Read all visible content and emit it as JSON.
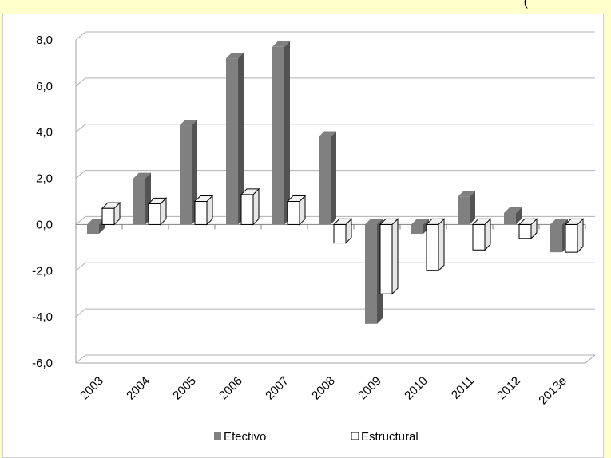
{
  "top_fragment": "(",
  "chart_data": {
    "type": "bar",
    "title": "",
    "xlabel": "",
    "ylabel": "",
    "categories": [
      "2003",
      "2004",
      "2005",
      "2006",
      "2007",
      "2008",
      "2009",
      "2010",
      "2011",
      "2012",
      "2013e"
    ],
    "series": [
      {
        "name": "Efectivo",
        "values": [
          -0.4,
          2.0,
          4.3,
          7.2,
          7.7,
          3.8,
          -4.3,
          -0.4,
          1.2,
          0.5,
          -1.2
        ],
        "color": "#808080"
      },
      {
        "name": "Estructural",
        "values": [
          0.7,
          0.9,
          1.0,
          1.3,
          1.0,
          -0.8,
          -3.0,
          -2.0,
          -1.1,
          -0.6,
          -1.2
        ],
        "color": "#ffffff"
      }
    ],
    "yticks": [
      "8,0",
      "6,0",
      "4,0",
      "2,0",
      "0,0",
      "-2,0",
      "-4,0",
      "-6,0"
    ],
    "ylim": [
      -6,
      8
    ],
    "grid": true,
    "legend": "bottom"
  }
}
